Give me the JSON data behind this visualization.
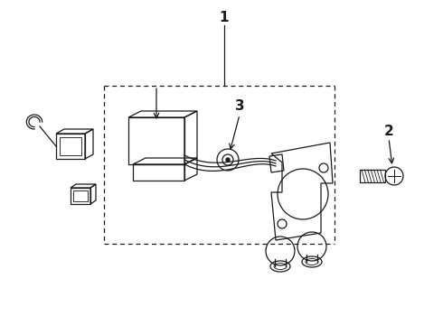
{
  "bg_color": "#ffffff",
  "line_color": "#1a1a1a",
  "label_1": "1",
  "label_2": "2",
  "label_3": "3",
  "figsize": [
    4.9,
    3.6
  ],
  "dpi": 100,
  "lw": 0.9
}
